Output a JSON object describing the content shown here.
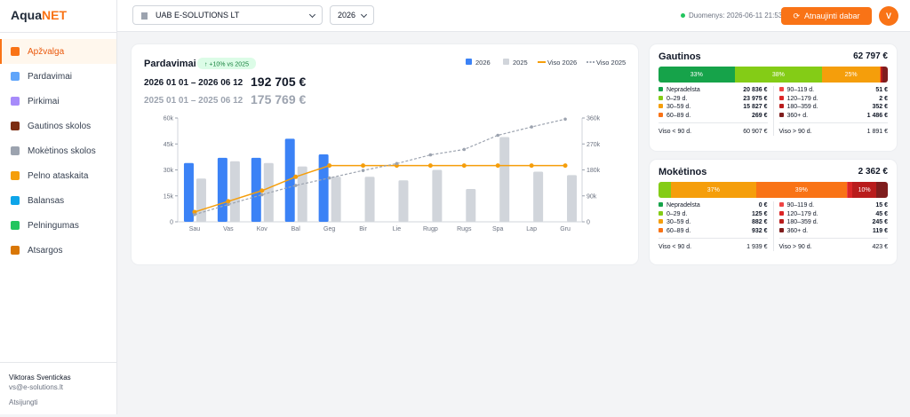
{
  "app": {
    "logo_main": "Aqua",
    "logo_accent": "NET"
  },
  "nav": [
    "Apžvalga",
    "Pardavimai",
    "Pirkimai",
    "Gautinos skolos",
    "Mokėtinos skolos",
    "Pelno ataskaita",
    "Balansas",
    "Pelningumas",
    "Atsargos"
  ],
  "user": {
    "name": "Viktoras Sventickas",
    "email": "vs@e-solutions.lt",
    "logout": "Atsijungti"
  },
  "topbar": {
    "company": "UAB E-SOLUTIONS LT",
    "year": "2026",
    "status": "Duomenys: 2026-06-11 21:53",
    "refresh": "Atnaujinti dabar",
    "avatar": "V"
  },
  "chart_data": {
    "type": "bar",
    "title": "Pardavimai",
    "badge": "↑ +10% vs 2025",
    "periods": [
      {
        "range": "2026 01 01 – 2026 06 12",
        "total": "192 705 €"
      },
      {
        "range": "2025 01 01 – 2025 06 12",
        "total": "175 769 €"
      }
    ],
    "categories": [
      "Sau",
      "Vas",
      "Kov",
      "Bal",
      "Geg",
      "Bir",
      "Lie",
      "Rugp",
      "Rugs",
      "Spa",
      "Lap",
      "Gru"
    ],
    "series": [
      {
        "name": "2026",
        "color": "#3b82f6",
        "values": [
          34000,
          37000,
          37000,
          48000,
          39000,
          null,
          null,
          null,
          null,
          null,
          null,
          null
        ]
      },
      {
        "name": "2025",
        "color": "#d1d5db",
        "values": [
          25000,
          35000,
          34000,
          32000,
          26000,
          26000,
          24000,
          30000,
          19000,
          49000,
          29000,
          27000
        ]
      },
      {
        "name": "Viso 2026",
        "color": "#f59e0b",
        "type": "line",
        "axis": "y2",
        "values": [
          34000,
          71000,
          108000,
          156000,
          195000,
          195000,
          195000,
          195000,
          195000,
          195000,
          195000,
          195000
        ]
      },
      {
        "name": "Viso 2025",
        "color": "#9ca3af",
        "type": "line",
        "axis": "y2",
        "dashed": true,
        "values": [
          25000,
          60000,
          94000,
          126000,
          152000,
          178000,
          202000,
          232000,
          251000,
          300000,
          329000,
          356000
        ]
      }
    ],
    "ylim": [
      0,
      60000
    ],
    "yticks": [
      0,
      {
        "value": 15000,
        "label": "15k"
      },
      {
        "value": 30000,
        "label": "30k"
      },
      {
        "value": 45000,
        "label": "45k"
      },
      {
        "value": 60000,
        "label": "60k"
      }
    ],
    "y2lim": [
      0,
      360000
    ],
    "y2ticks": [
      0,
      {
        "value": 90000,
        "label": "90k"
      },
      {
        "value": 180000,
        "label": "180k"
      },
      {
        "value": 270000,
        "label": "270k"
      },
      {
        "value": 360000,
        "label": "360k"
      }
    ],
    "grid": false
  },
  "cards": [
    {
      "title": "Gautinos",
      "total": "62 797 €",
      "buckets": [
        {
          "name": "Nepradelsta",
          "color": "#16a34a",
          "amount": 20836,
          "amount_label": "20 836 €",
          "bar_label": "33%"
        },
        {
          "name": "0–29 d.",
          "color": "#84cc16",
          "amount": 23975,
          "amount_label": "23 975 €",
          "bar_label": "38%"
        },
        {
          "name": "30–59 d.",
          "color": "#f59e0b",
          "amount": 15827,
          "amount_label": "15 827 €",
          "bar_label": "25%"
        },
        {
          "name": "60–89 d.",
          "color": "#f97316",
          "amount": 269,
          "amount_label": "269 €"
        },
        {
          "name": "90–119 d.",
          "color": "#ef4444",
          "amount": 51,
          "amount_label": "51 €"
        },
        {
          "name": "120–179 d.",
          "color": "#dc2626",
          "amount": 2,
          "amount_label": "2 €"
        },
        {
          "name": "180–359 d.",
          "color": "#b91c1c",
          "amount": 352,
          "amount_label": "352 €"
        },
        {
          "name": "360+ d.",
          "color": "#7f1d1d",
          "amount": 1486,
          "amount_label": "1 486 €"
        }
      ],
      "subtotals": [
        {
          "label": "Viso < 90 d.",
          "value": "60 907 €"
        },
        {
          "label": "Viso > 90 d.",
          "value": "1 891 €"
        }
      ]
    },
    {
      "title": "Mokėtinos",
      "total": "2 362 €",
      "buckets": [
        {
          "name": "Nepradelsta",
          "color": "#16a34a",
          "amount": 0,
          "amount_label": "0 €"
        },
        {
          "name": "0–29 d.",
          "color": "#84cc16",
          "amount": 125,
          "amount_label": "125 €"
        },
        {
          "name": "30–59 d.",
          "color": "#f59e0b",
          "amount": 882,
          "amount_label": "882 €",
          "bar_label": "37%"
        },
        {
          "name": "60–89 d.",
          "color": "#f97316",
          "amount": 932,
          "amount_label": "932 €",
          "bar_label": "39%"
        },
        {
          "name": "90–119 d.",
          "color": "#ef4444",
          "amount": 15,
          "amount_label": "15 €"
        },
        {
          "name": "120–179 d.",
          "color": "#dc2626",
          "amount": 45,
          "amount_label": "45 €"
        },
        {
          "name": "180–359 d.",
          "color": "#b91c1c",
          "amount": 245,
          "amount_label": "245 €",
          "bar_label": "10%"
        },
        {
          "name": "360+ d.",
          "color": "#7f1d1d",
          "amount": 119,
          "amount_label": "119 €"
        }
      ],
      "subtotals": [
        {
          "label": "Viso < 90 d.",
          "value": "1 939 €"
        },
        {
          "label": "Viso > 90 d.",
          "value": "423 €"
        }
      ]
    }
  ]
}
